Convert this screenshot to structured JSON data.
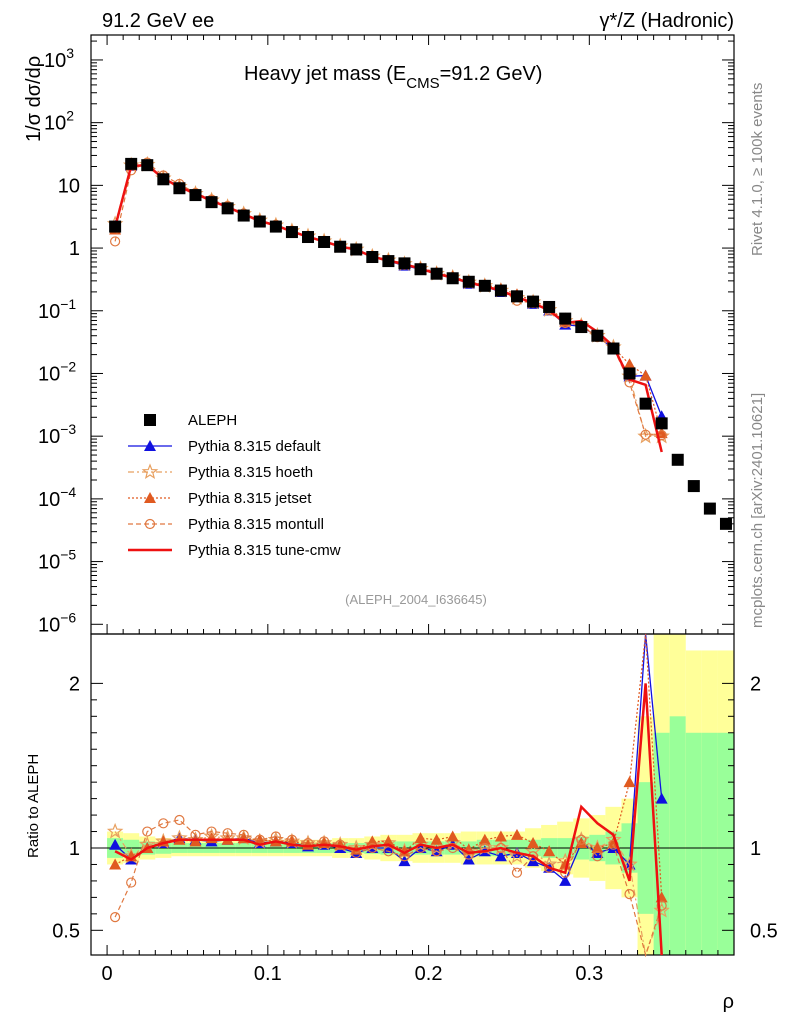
{
  "header": {
    "left": "91.2 GeV ee",
    "right": "γ*/Z (Hadronic)"
  },
  "side_labels": {
    "rivet": "Rivet 4.1.0, ≥ 100k events",
    "mcplots": "mcplots.cern.ch [arXiv:2401.10621]"
  },
  "reference": "(ALEPH_2004_I636645)",
  "colors": {
    "data": "#000000",
    "default": "#1010e0",
    "hoeth": "#e8a060",
    "jetset": "#e05a20",
    "montull": "#e07840",
    "tunecmw": "#ee1111",
    "band_yellow": "#ffff99",
    "band_green": "#99ff99"
  },
  "chart_data": {
    "type": "line",
    "title": "Heavy jet mass (E_CMS=91.2 GeV)",
    "title_main": "Heavy jet mass (E",
    "title_sub": "CMS",
    "title_tail": "=91.2 GeV)",
    "xlabel": "ρ",
    "ylabel": "1/σ dσ/dρ",
    "ratio_ylabel": "Ratio to ALEPH",
    "xlim": [
      -0.01,
      0.39
    ],
    "ylim_log": [
      7e-07,
      2500
    ],
    "ratio_ylim": [
      0.35,
      2.3
    ],
    "x_ticks": [
      "0",
      "0.1",
      "0.2",
      "0.3"
    ],
    "y_ticks": [
      {
        "v": 1000,
        "base": "10",
        "exp": "3"
      },
      {
        "v": 100,
        "base": "10",
        "exp": "2"
      },
      {
        "v": 10,
        "base": "10",
        "exp": ""
      },
      {
        "v": 1,
        "base": "1",
        "exp": ""
      },
      {
        "v": 0.1,
        "base": "10",
        "exp": "−1"
      },
      {
        "v": 0.01,
        "base": "10",
        "exp": "−2"
      },
      {
        "v": 0.001,
        "base": "10",
        "exp": "−3"
      },
      {
        "v": 0.0001,
        "base": "10",
        "exp": "−4"
      },
      {
        "v": 1e-05,
        "base": "10",
        "exp": "−5"
      },
      {
        "v": 1e-06,
        "base": "10",
        "exp": "−6"
      }
    ],
    "ratio_ticks": [
      "0.5",
      "1",
      "2"
    ],
    "legend": [
      {
        "key": "data",
        "label": "ALEPH"
      },
      {
        "key": "default",
        "label": "Pythia 8.315 default"
      },
      {
        "key": "hoeth",
        "label": "Pythia 8.315 hoeth"
      },
      {
        "key": "jetset",
        "label": "Pythia 8.315 jetset"
      },
      {
        "key": "montull",
        "label": "Pythia 8.315 montull"
      },
      {
        "key": "tunecmw",
        "label": "Pythia 8.315 tune-cmw"
      }
    ],
    "x": [
      0.005,
      0.015,
      0.025,
      0.035,
      0.045,
      0.055,
      0.065,
      0.075,
      0.085,
      0.095,
      0.105,
      0.115,
      0.125,
      0.135,
      0.145,
      0.155,
      0.165,
      0.175,
      0.185,
      0.195,
      0.205,
      0.215,
      0.225,
      0.235,
      0.245,
      0.255,
      0.265,
      0.275,
      0.285,
      0.295,
      0.305,
      0.315,
      0.325,
      0.335,
      0.345,
      0.355,
      0.365,
      0.375,
      0.385
    ],
    "data": [
      2.2,
      22,
      21,
      12.5,
      9,
      7,
      5.4,
      4.3,
      3.3,
      2.65,
      2.2,
      1.8,
      1.5,
      1.25,
      1.05,
      0.95,
      0.72,
      0.62,
      0.57,
      0.46,
      0.39,
      0.33,
      0.29,
      0.25,
      0.21,
      0.17,
      0.14,
      0.115,
      0.075,
      0.055,
      0.04,
      0.025,
      0.01,
      0.0033,
      0.0016,
      0.00042,
      0.00016,
      7e-05,
      4e-05
    ],
    "band_green": [
      0.06,
      0.05,
      0.04,
      0.035,
      0.03,
      0.03,
      0.03,
      0.03,
      0.03,
      0.03,
      0.03,
      0.03,
      0.03,
      0.03,
      0.03,
      0.03,
      0.035,
      0.04,
      0.04,
      0.04,
      0.04,
      0.04,
      0.04,
      0.05,
      0.05,
      0.05,
      0.05,
      0.06,
      0.06,
      0.07,
      0.08,
      0.1,
      0.15,
      0.4,
      0.7,
      0.8,
      0.7,
      0.7,
      0.7
    ],
    "band_yellow": [
      0.1,
      0.09,
      0.07,
      0.06,
      0.05,
      0.05,
      0.05,
      0.05,
      0.05,
      0.05,
      0.05,
      0.05,
      0.05,
      0.05,
      0.06,
      0.06,
      0.07,
      0.08,
      0.08,
      0.09,
      0.09,
      0.09,
      0.1,
      0.1,
      0.1,
      0.1,
      0.12,
      0.14,
      0.16,
      0.18,
      0.2,
      0.25,
      0.3,
      0.8,
      1.3,
      1.3,
      1.2,
      1.2,
      1.2
    ],
    "series": [
      {
        "key": "default",
        "ratios": [
          1.02,
          0.93,
          1.0,
          1.03,
          1.06,
          1.05,
          1.04,
          1.05,
          1.06,
          1.03,
          1.04,
          1.03,
          1.01,
          1.02,
          1.0,
          0.97,
          1.0,
          1.0,
          0.92,
          1.0,
          0.98,
          1.02,
          0.93,
          0.98,
          0.95,
          0.97,
          0.92,
          0.88,
          0.8,
          1.03,
          0.97,
          1.0,
          0.9,
          2.8,
          1.3
        ]
      },
      {
        "key": "hoeth",
        "ratios": [
          1.1,
          0.95,
          1.02,
          1.04,
          1.06,
          1.05,
          1.07,
          1.06,
          1.06,
          1.04,
          1.05,
          1.04,
          1.03,
          1.03,
          1.02,
          1.0,
          1.02,
          1.03,
          0.98,
          1.02,
          1.0,
          1.03,
          0.98,
          1.0,
          1.0,
          0.95,
          0.98,
          0.9,
          0.92,
          1.05,
          1.0,
          1.05,
          0.9,
          0.3,
          0.62
        ]
      },
      {
        "key": "jetset",
        "ratios": [
          0.9,
          0.95,
          1.0,
          1.04,
          1.05,
          1.04,
          1.06,
          1.05,
          1.06,
          1.05,
          1.04,
          1.04,
          1.02,
          1.03,
          1.02,
          0.99,
          1.04,
          1.04,
          0.98,
          1.06,
          1.05,
          1.07,
          0.99,
          1.05,
          1.07,
          1.08,
          1.03,
          0.98,
          0.9,
          1.03,
          1.0,
          1.03,
          1.4,
          2.8,
          0.7
        ]
      },
      {
        "key": "montull",
        "ratios": [
          0.58,
          0.79,
          1.1,
          1.15,
          1.17,
          1.08,
          1.1,
          1.09,
          1.08,
          1.05,
          1.07,
          1.05,
          1.03,
          1.04,
          1.02,
          0.97,
          1.0,
          0.98,
          0.95,
          1.0,
          0.98,
          1.0,
          0.96,
          1.0,
          1.0,
          0.85,
          0.95,
          0.88,
          0.85,
          1.05,
          0.95,
          1.02,
          0.72,
          0.32,
          0.65
        ]
      },
      {
        "key": "tunecmw",
        "ratios": [
          0.98,
          0.93,
          1.0,
          1.03,
          1.05,
          1.05,
          1.05,
          1.05,
          1.05,
          1.02,
          1.04,
          1.02,
          1.01,
          1.02,
          1.01,
          0.99,
          1.01,
          1.02,
          0.97,
          1.02,
          1.0,
          1.02,
          0.97,
          0.98,
          1.0,
          0.97,
          0.95,
          0.88,
          0.85,
          1.25,
          1.15,
          1.08,
          0.8,
          2.0,
          0.35
        ]
      }
    ]
  }
}
